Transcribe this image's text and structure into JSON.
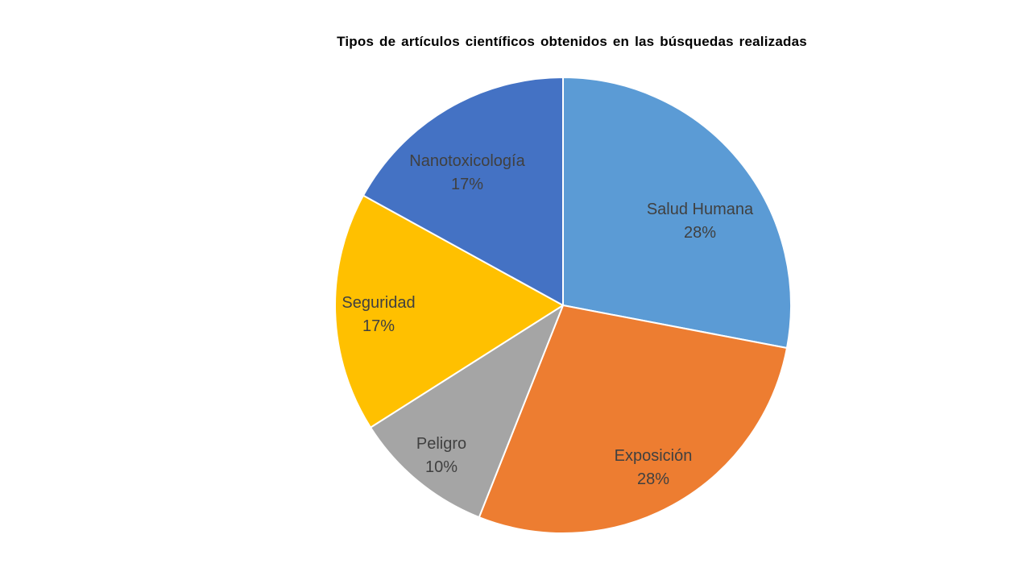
{
  "chart_data": {
    "type": "pie",
    "title": "Tipos de artículos científicos obtenidos en las búsquedas  realizadas",
    "slices": [
      {
        "label": "Salud Humana",
        "value": 28,
        "percent_label": "28%",
        "color": "#5B9BD5"
      },
      {
        "label": "Exposición",
        "value": 28,
        "percent_label": "28%",
        "color": "#ED7D31"
      },
      {
        "label": "Peligro",
        "value": 10,
        "percent_label": "10%",
        "color": "#A5A5A5"
      },
      {
        "label": "Seguridad",
        "value": 17,
        "percent_label": "17%",
        "color": "#FFC000"
      },
      {
        "label": "Nanotoxicología",
        "value": 17,
        "percent_label": "17%",
        "color": "#4472C4"
      }
    ],
    "start": "12 o'clock",
    "direction": "clockwise",
    "legend": "none",
    "data_labels": "category name and percentage inside slices"
  }
}
